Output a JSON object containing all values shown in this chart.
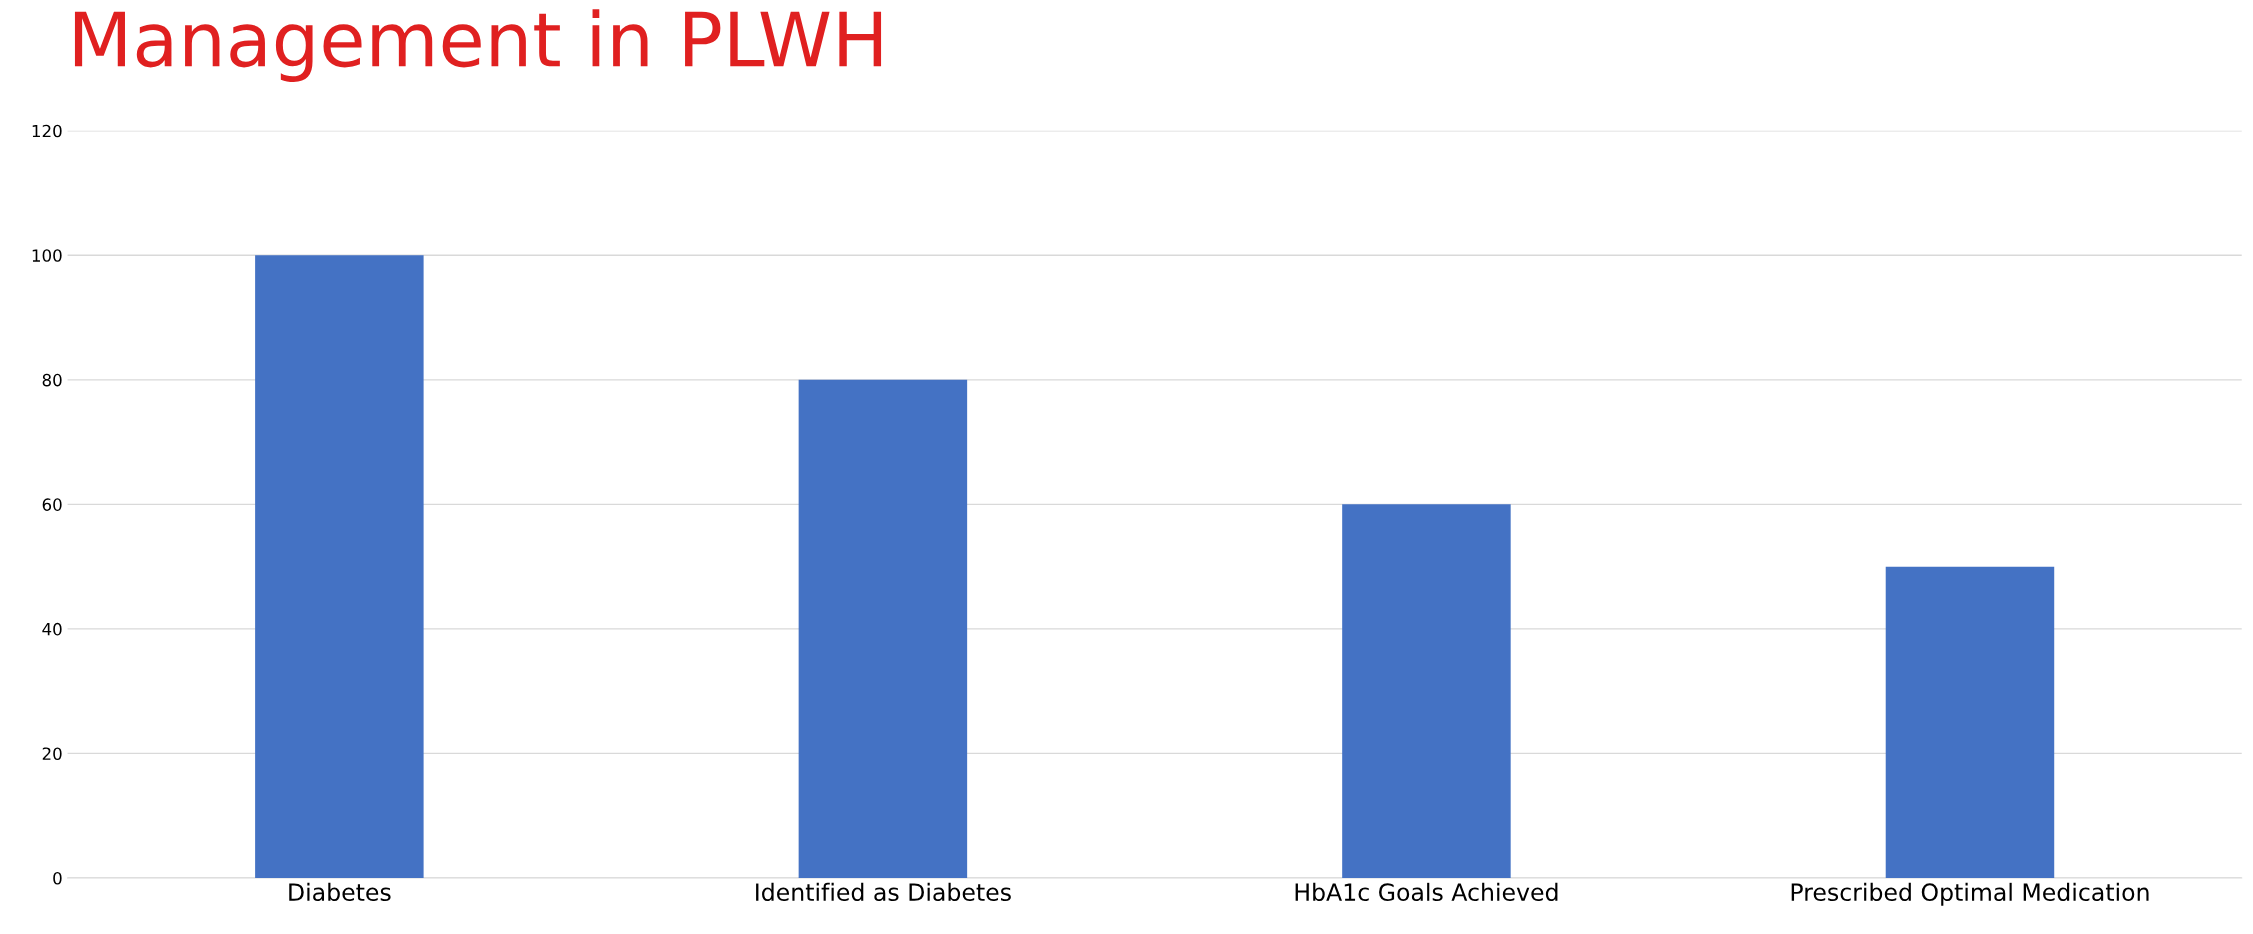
{
  "chart_data": {
    "type": "bar",
    "title": "Management in PLWH",
    "categories": [
      "Diabetes",
      "Identified as Diabetes",
      "HbA1c Goals Achieved",
      "Prescribed Optimal Medication"
    ],
    "values": [
      100,
      80,
      60,
      50
    ],
    "color": "#4472c4",
    "ylim": [
      0,
      120
    ],
    "yticks": [
      0,
      20,
      40,
      60,
      80,
      100,
      120
    ],
    "grid": "y"
  }
}
